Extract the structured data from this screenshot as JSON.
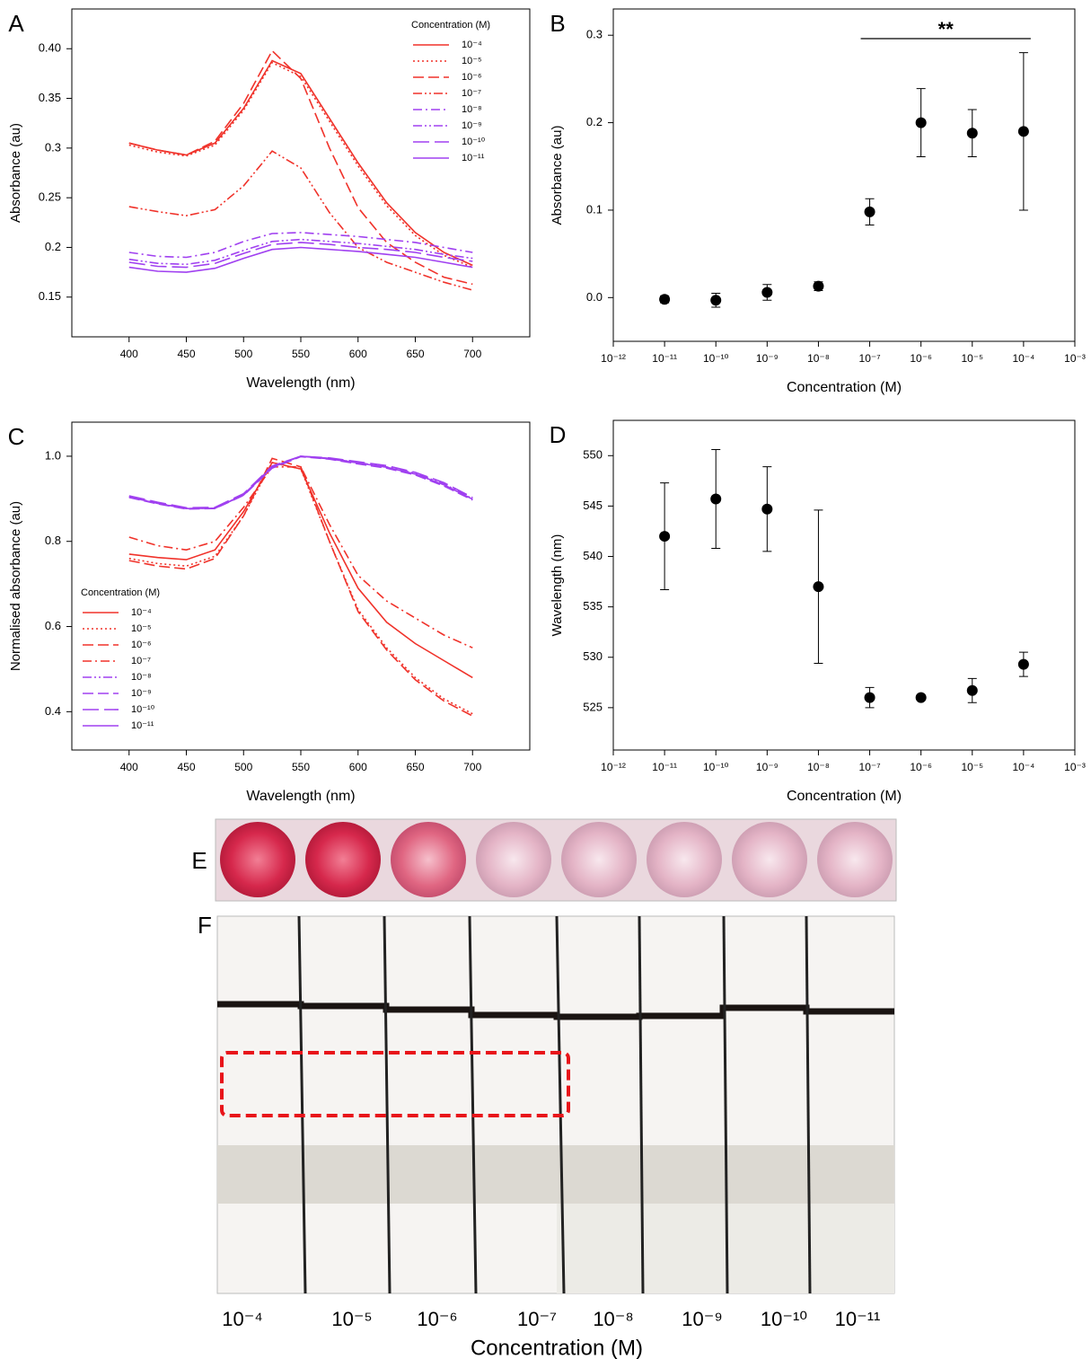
{
  "chart_data": [
    {
      "type": "line",
      "panel_label": "A",
      "xlabel": "Wavelength (nm)",
      "ylabel": "Absorbance (au)",
      "xlim": [
        350,
        750
      ],
      "ylim": [
        0.11,
        0.44
      ],
      "xticks": [
        400,
        450,
        500,
        550,
        600,
        650,
        700
      ],
      "yticks": [
        0.15,
        0.2,
        0.25,
        0.3,
        0.35,
        {
          "value": 0.4,
          "label": "0.40"
        }
      ],
      "legend": "upper right",
      "legend_title": "Concentration (M)",
      "x": [
        400,
        425,
        450,
        475,
        500,
        525,
        550,
        575,
        600,
        625,
        650,
        675,
        700
      ],
      "series": [
        {
          "name": "10⁻⁴",
          "color": "#f0322a",
          "linestyle": "solid",
          "values": [
            0.305,
            0.298,
            0.293,
            0.305,
            0.34,
            0.388,
            0.375,
            0.33,
            0.285,
            0.245,
            0.215,
            0.195,
            0.182
          ]
        },
        {
          "name": "10⁻⁵",
          "color": "#f0322a",
          "linestyle": "dotted",
          "values": [
            0.303,
            0.296,
            0.292,
            0.303,
            0.338,
            0.386,
            0.372,
            0.327,
            0.282,
            0.242,
            0.212,
            0.192,
            0.18
          ]
        },
        {
          "name": "10⁻⁶",
          "color": "#f0322a",
          "linestyle": "dashed",
          "values": [
            0.305,
            0.298,
            0.293,
            0.307,
            0.345,
            0.398,
            0.37,
            0.3,
            0.24,
            0.205,
            0.185,
            0.17,
            0.163
          ]
        },
        {
          "name": "10⁻⁷",
          "color": "#f0322a",
          "linestyle": "dashdotdot",
          "values": [
            0.241,
            0.236,
            0.232,
            0.238,
            0.262,
            0.297,
            0.28,
            0.235,
            0.2,
            0.185,
            0.175,
            0.165,
            0.157
          ]
        },
        {
          "name": "10⁻⁸",
          "color": "#a040f0",
          "linestyle": "dashdot",
          "values": [
            0.195,
            0.191,
            0.19,
            0.195,
            0.206,
            0.214,
            0.215,
            0.213,
            0.211,
            0.208,
            0.205,
            0.2,
            0.195
          ]
        },
        {
          "name": "10⁻⁹",
          "color": "#a040f0",
          "linestyle": "dashdotdot",
          "values": [
            0.188,
            0.184,
            0.183,
            0.187,
            0.197,
            0.206,
            0.208,
            0.206,
            0.204,
            0.201,
            0.198,
            0.193,
            0.189
          ]
        },
        {
          "name": "10⁻¹⁰",
          "color": "#a040f0",
          "linestyle": "longdash",
          "values": [
            0.185,
            0.181,
            0.18,
            0.184,
            0.194,
            0.203,
            0.205,
            0.203,
            0.2,
            0.198,
            0.195,
            0.19,
            0.186
          ]
        },
        {
          "name": "10⁻¹¹",
          "color": "#a040f0",
          "linestyle": "solid",
          "values": [
            0.18,
            0.176,
            0.175,
            0.179,
            0.189,
            0.198,
            0.2,
            0.198,
            0.196,
            0.193,
            0.19,
            0.185,
            0.18
          ]
        }
      ]
    },
    {
      "type": "scatter",
      "panel_label": "B",
      "xlabel": "Concentration (M)",
      "ylabel": "Absorbance (au)",
      "log_x": true,
      "xlim": [
        1e-12,
        0.001
      ],
      "ylim": [
        -0.05,
        0.33
      ],
      "xticks": [
        {
          "value": 1e-12,
          "label": "10⁻¹²"
        },
        {
          "value": 1e-11,
          "label": "10⁻¹¹"
        },
        {
          "value": 1e-10,
          "label": "10⁻¹⁰"
        },
        {
          "value": 1e-09,
          "label": "10⁻⁹"
        },
        {
          "value": 1e-08,
          "label": "10⁻⁸"
        },
        {
          "value": 1e-07,
          "label": "10⁻⁷"
        },
        {
          "value": 1e-06,
          "label": "10⁻⁶"
        },
        {
          "value": 1e-05,
          "label": "10⁻⁵"
        },
        {
          "value": 0.0001,
          "label": "10⁻⁴"
        },
        {
          "value": 0.001,
          "label": "10⁻³"
        }
      ],
      "yticks": [
        {
          "value": 0,
          "label": "0.0"
        },
        0.1,
        0.2,
        0.3
      ],
      "annotation": "**",
      "x": [
        1e-11,
        1e-10,
        1e-09,
        1e-08,
        1e-07,
        1e-06,
        1e-05,
        0.0001
      ],
      "series": [
        {
          "color": "#000000",
          "values": [
            -0.002,
            -0.003,
            0.006,
            0.013,
            0.098,
            0.2,
            0.188,
            0.19
          ],
          "errors": [
            0.004,
            0.008,
            0.009,
            0.005,
            0.015,
            0.039,
            0.027,
            0.09
          ]
        }
      ]
    },
    {
      "type": "line",
      "panel_label": "C",
      "xlabel": "Wavelength (nm)",
      "ylabel": "Normalised absorbance (au)",
      "xlim": [
        350,
        750
      ],
      "ylim": [
        0.31,
        1.08
      ],
      "xticks": [
        400,
        450,
        500,
        550,
        600,
        650,
        700
      ],
      "yticks": [
        0.4,
        0.6,
        0.8,
        {
          "value": 1,
          "label": "1.0"
        }
      ],
      "legend": "lower left",
      "legend_title": "Concentration (M)",
      "x": [
        400,
        425,
        450,
        475,
        500,
        525,
        550,
        575,
        600,
        625,
        650,
        675,
        700
      ],
      "series": [
        {
          "name": "10⁻⁴",
          "color": "#f0322a",
          "linestyle": "solid",
          "values": [
            0.77,
            0.762,
            0.757,
            0.78,
            0.87,
            0.985,
            0.97,
            0.82,
            0.69,
            0.61,
            0.56,
            0.52,
            0.48
          ]
        },
        {
          "name": "10⁻⁵",
          "color": "#f0322a",
          "linestyle": "dotted",
          "values": [
            0.76,
            0.748,
            0.742,
            0.765,
            0.86,
            0.985,
            0.97,
            0.8,
            0.64,
            0.55,
            0.48,
            0.43,
            0.395
          ]
        },
        {
          "name": "10⁻⁶",
          "color": "#f0322a",
          "linestyle": "dashed",
          "values": [
            0.755,
            0.742,
            0.735,
            0.76,
            0.86,
            0.995,
            0.975,
            0.8,
            0.635,
            0.545,
            0.475,
            0.425,
            0.39
          ]
        },
        {
          "name": "10⁻⁷",
          "color": "#f0322a",
          "linestyle": "dashdot",
          "values": [
            0.81,
            0.79,
            0.78,
            0.8,
            0.88,
            0.975,
            0.975,
            0.84,
            0.72,
            0.66,
            0.62,
            0.58,
            0.55
          ]
        },
        {
          "name": "10⁻⁸",
          "color": "#a040f0",
          "linestyle": "dashdotdot",
          "values": [
            0.905,
            0.89,
            0.877,
            0.878,
            0.91,
            0.975,
            1.0,
            0.995,
            0.985,
            0.975,
            0.96,
            0.935,
            0.9
          ]
        },
        {
          "name": "10⁻⁹",
          "color": "#a040f0",
          "linestyle": "dashed",
          "values": [
            0.903,
            0.888,
            0.876,
            0.877,
            0.908,
            0.972,
            0.999,
            0.993,
            0.982,
            0.972,
            0.956,
            0.93,
            0.897
          ]
        },
        {
          "name": "10⁻¹⁰",
          "color": "#a040f0",
          "linestyle": "longdash",
          "values": [
            0.907,
            0.892,
            0.879,
            0.88,
            0.912,
            0.977,
            1.0,
            0.996,
            0.987,
            0.978,
            0.962,
            0.938,
            0.903
          ]
        },
        {
          "name": "10⁻¹¹",
          "color": "#a040f0",
          "linestyle": "solid",
          "values": [
            0.904,
            0.889,
            0.877,
            0.878,
            0.909,
            0.974,
            1.0,
            0.994,
            0.984,
            0.974,
            0.958,
            0.933,
            0.899
          ]
        }
      ]
    },
    {
      "type": "scatter",
      "panel_label": "D",
      "xlabel": "Concentration (M)",
      "ylabel": "Wavelength (nm)",
      "log_x": true,
      "xlim": [
        1e-12,
        0.001
      ],
      "ylim": [
        520.8,
        553.5
      ],
      "xticks": [
        {
          "value": 1e-12,
          "label": "10⁻¹²"
        },
        {
          "value": 1e-11,
          "label": "10⁻¹¹"
        },
        {
          "value": 1e-10,
          "label": "10⁻¹⁰"
        },
        {
          "value": 1e-09,
          "label": "10⁻⁹"
        },
        {
          "value": 1e-08,
          "label": "10⁻⁸"
        },
        {
          "value": 1e-07,
          "label": "10⁻⁷"
        },
        {
          "value": 1e-06,
          "label": "10⁻⁶"
        },
        {
          "value": 1e-05,
          "label": "10⁻⁵"
        },
        {
          "value": 0.0001,
          "label": "10⁻⁴"
        },
        {
          "value": 0.001,
          "label": "10⁻³"
        }
      ],
      "yticks": [
        525,
        530,
        535,
        540,
        545,
        550
      ],
      "x": [
        1e-11,
        1e-10,
        1e-09,
        1e-08,
        1e-07,
        1e-06,
        1e-05,
        0.0001
      ],
      "series": [
        {
          "color": "#000000",
          "values": [
            542,
            545.7,
            544.7,
            537,
            526,
            526,
            526.7,
            529.3
          ],
          "errors": [
            5.3,
            4.9,
            4.2,
            7.6,
            1,
            0,
            1.2,
            1.2
          ]
        }
      ]
    }
  ],
  "photo_e": {
    "label": "E"
  },
  "photo_f": {
    "label": "F",
    "categories": [
      "10⁻⁴",
      "10⁻⁵",
      "10⁻⁶",
      "10⁻⁷",
      "10⁻⁸",
      "10⁻⁹",
      "10⁻¹⁰",
      "10⁻¹¹"
    ],
    "xlabel": "Concentration (M)"
  }
}
